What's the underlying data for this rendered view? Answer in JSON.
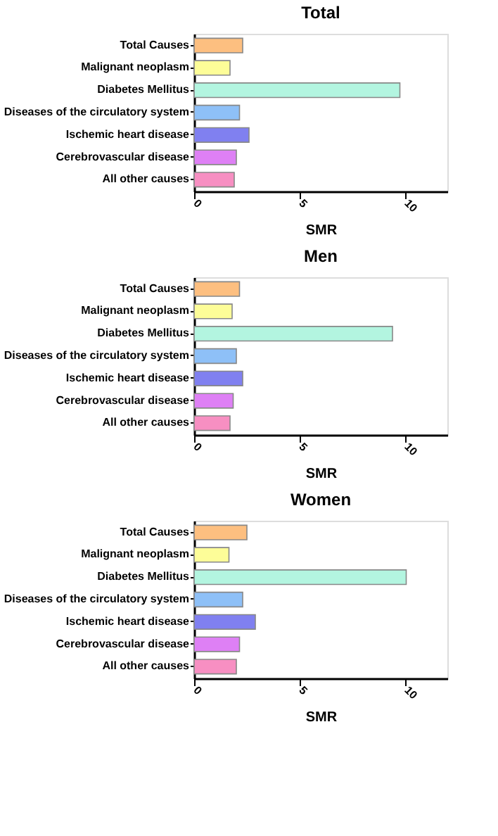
{
  "chart_data": [
    {
      "type": "bar",
      "orientation": "horizontal",
      "title": "Total",
      "xlabel": "SMR",
      "categories": [
        "Total Causes",
        "Malignant neoplasm",
        "Diabetes Mellitus",
        "Diseases of the circulatory system",
        "Ischemic heart disease",
        "Cerebrovascular disease",
        "All other causes"
      ],
      "values": [
        2.3,
        1.7,
        9.75,
        2.15,
        2.6,
        2.0,
        1.9
      ],
      "colors": [
        "#fdbf80",
        "#fdfd98",
        "#b3f5e0",
        "#8ec0f7",
        "#8080f0",
        "#de80f5",
        "#f78fc2"
      ],
      "xlim": [
        0,
        12
      ],
      "xticks": [
        0,
        5,
        10
      ]
    },
    {
      "type": "bar",
      "orientation": "horizontal",
      "title": "Men",
      "xlabel": "SMR",
      "categories": [
        "Total Causes",
        "Malignant neoplasm",
        "Diabetes Mellitus",
        "Diseases of the circulatory system",
        "Ischemic heart disease",
        "Cerebrovascular disease",
        "All other causes"
      ],
      "values": [
        2.15,
        1.8,
        9.4,
        2.0,
        2.3,
        1.85,
        1.7
      ],
      "colors": [
        "#fdbf80",
        "#fdfd98",
        "#b3f5e0",
        "#8ec0f7",
        "#8080f0",
        "#de80f5",
        "#f78fc2"
      ],
      "xlim": [
        0,
        12
      ],
      "xticks": [
        0,
        5,
        10
      ]
    },
    {
      "type": "bar",
      "orientation": "horizontal",
      "title": "Women",
      "xlabel": "SMR",
      "categories": [
        "Total Causes",
        "Malignant neoplasm",
        "Diabetes Mellitus",
        "Diseases of the circulatory system",
        "Ischemic heart disease",
        "Cerebrovascular disease",
        "All other causes"
      ],
      "values": [
        2.5,
        1.65,
        10.05,
        2.3,
        2.9,
        2.15,
        2.0
      ],
      "colors": [
        "#fdbf80",
        "#fdfd98",
        "#b3f5e0",
        "#8ec0f7",
        "#8080f0",
        "#de80f5",
        "#f78fc2"
      ],
      "xlim": [
        0,
        12
      ],
      "xticks": [
        0,
        5,
        10
      ]
    }
  ]
}
